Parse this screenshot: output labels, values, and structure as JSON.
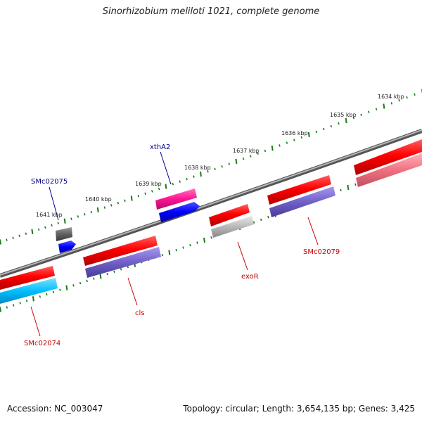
{
  "title": "Sinorhizobium meliloti 1021, complete genome",
  "footer": {
    "accession": "Accession: NC_003047",
    "summary": "Topology: circular; Length: 3,654,135 bp; Genes: 3,425"
  },
  "scale_labels": [
    "1641 kbp",
    "1640 kbp",
    "1639 kbp",
    "1638 kbp",
    "1637 kbp",
    "1636 kbp",
    "1635 kbp",
    "1634 kbp"
  ],
  "genes": [
    {
      "label": "SMc02075",
      "color": "#00008b"
    },
    {
      "label": "xthA2",
      "color": "#00008b"
    },
    {
      "label": "exoR",
      "color": "#cc0000"
    },
    {
      "label": "SMc02079",
      "color": "#cc0000"
    },
    {
      "label": "cls",
      "color": "#cc0000"
    },
    {
      "label": "SMc02074",
      "color": "#cc0000"
    }
  ],
  "colors": {
    "backbone": "#7a7a7a",
    "tick": "#1a7a1a",
    "red": "#ff0000",
    "pink": "#f07080",
    "magenta": "#ff1493",
    "blue": "#0000ff",
    "purple": "#7060c8",
    "cyan": "#00bfff",
    "gray": "#b0b0b0",
    "darkgray": "#606060"
  }
}
